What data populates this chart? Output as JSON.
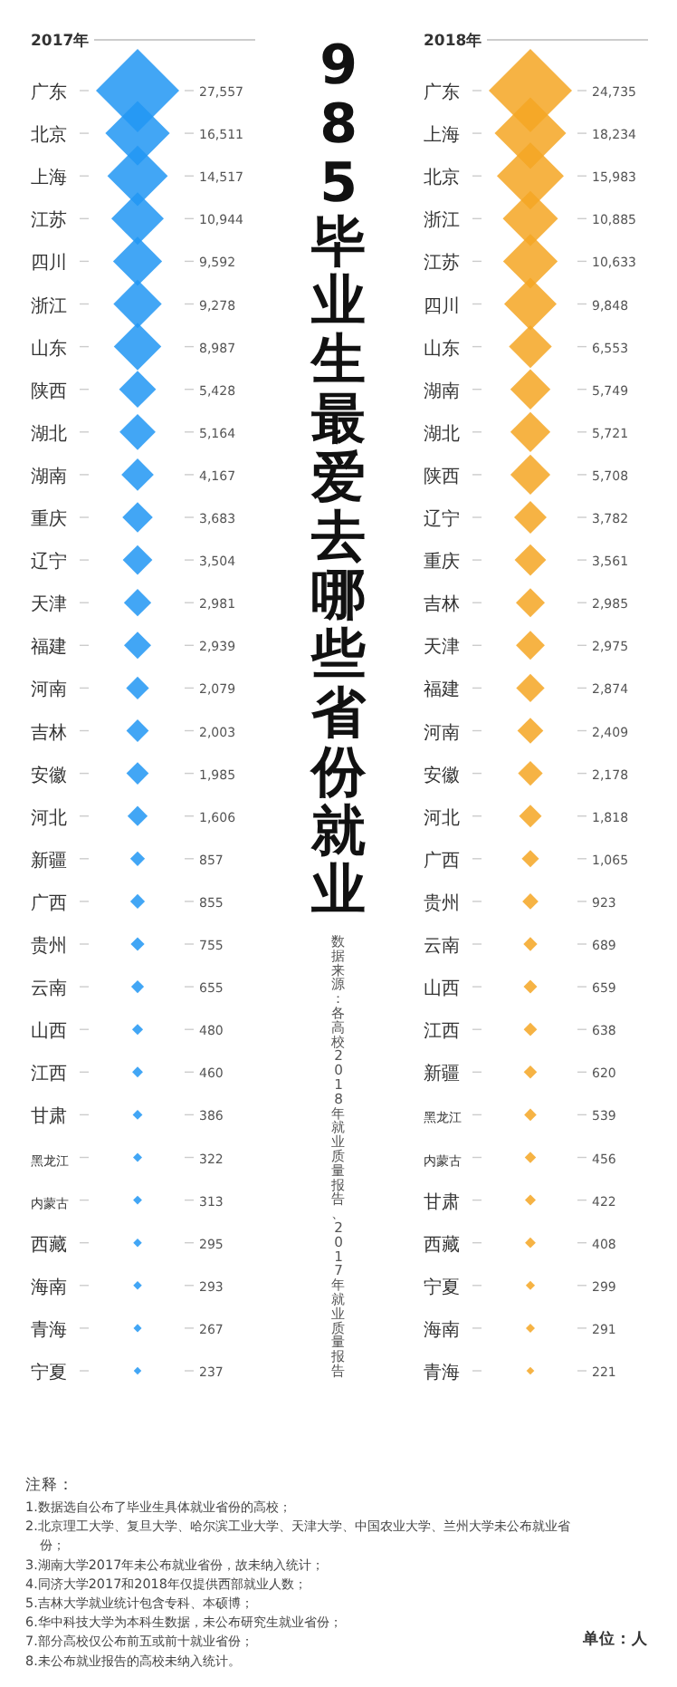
{
  "chart_data": [
    {
      "type": "other",
      "title": "2017年",
      "categories": [
        "广东",
        "北京",
        "上海",
        "江苏",
        "四川",
        "浙江",
        "山东",
        "陕西",
        "湖北",
        "湖南",
        "重庆",
        "辽宁",
        "天津",
        "福建",
        "河南",
        "吉林",
        "安徽",
        "河北",
        "新疆",
        "广西",
        "贵州",
        "云南",
        "山西",
        "江西",
        "甘肃",
        "黑龙江",
        "内蒙古",
        "西藏",
        "海南",
        "青海",
        "宁夏"
      ],
      "values": [
        27557,
        16511,
        14517,
        10944,
        9592,
        9278,
        8987,
        5428,
        5164,
        4167,
        3683,
        3504,
        2981,
        2939,
        2079,
        2003,
        1985,
        1606,
        857,
        855,
        755,
        655,
        480,
        460,
        386,
        322,
        313,
        295,
        293,
        267,
        237
      ],
      "value_labels": [
        "27,557",
        "16,511",
        "14,517",
        "10,944",
        "9,592",
        "9,278",
        "8,987",
        "5,428",
        "5,164",
        "4,167",
        "3,683",
        "3,504",
        "2,981",
        "2,939",
        "2,079",
        "2,003",
        "1,985",
        "1,606",
        "857",
        "855",
        "755",
        "655",
        "480",
        "460",
        "386",
        "322",
        "313",
        "295",
        "293",
        "267",
        "237"
      ],
      "color": "#2196f3"
    },
    {
      "type": "other",
      "title": "985毕业生最爱去哪些省份就业",
      "subtitle": "数据来源：各高校2018年就业质量报告、2017年就业质量报告",
      "annotations": [
        "注释：",
        "1.数据选自公布了毕业生具体就业省份的高校；",
        "2.北京理工大学、复旦大学、哈尔滨工业大学、天津大学、中国农业大学、兰州大学未公布就业省份；",
        "3.湖南大学2017年未公布就业省份，故未纳入统计；",
        "4.同济大学2017和2018年仅提供西部就业人数；",
        "5.吉林大学就业统计包含专科、本硕博；",
        "6.华中科技大学为本科生数据，未公布研究生就业省份；",
        "7.部分高校仅公布前五或前十就业省份；",
        "8.未公布就业报告的高校未纳入统计。",
        "单位：人"
      ]
    },
    {
      "type": "other",
      "title": "2018年",
      "categories": [
        "广东",
        "上海",
        "北京",
        "浙江",
        "江苏",
        "四川",
        "山东",
        "湖南",
        "湖北",
        "陕西",
        "辽宁",
        "重庆",
        "吉林",
        "天津",
        "福建",
        "河南",
        "安徽",
        "河北",
        "广西",
        "贵州",
        "云南",
        "山西",
        "江西",
        "新疆",
        "黑龙江",
        "内蒙古",
        "甘肃",
        "西藏",
        "宁夏",
        "海南",
        "青海"
      ],
      "values": [
        24735,
        18234,
        15983,
        10885,
        10633,
        9848,
        6553,
        5749,
        5721,
        5708,
        3782,
        3561,
        2985,
        2975,
        2874,
        2409,
        2178,
        1818,
        1065,
        923,
        689,
        659,
        638,
        620,
        539,
        456,
        422,
        408,
        299,
        291,
        221
      ],
      "value_labels": [
        "24,735",
        "18,234",
        "15,983",
        "10,885",
        "10,633",
        "9,848",
        "6,553",
        "5,749",
        "5,721",
        "5,708",
        "3,782",
        "3,561",
        "2,985",
        "2,975",
        "2,874",
        "2,409",
        "2,178",
        "1,818",
        "1,065",
        "923",
        "689",
        "659",
        "638",
        "620",
        "539",
        "456",
        "422",
        "408",
        "299",
        "291",
        "221"
      ],
      "color": "#f5a623"
    }
  ]
}
